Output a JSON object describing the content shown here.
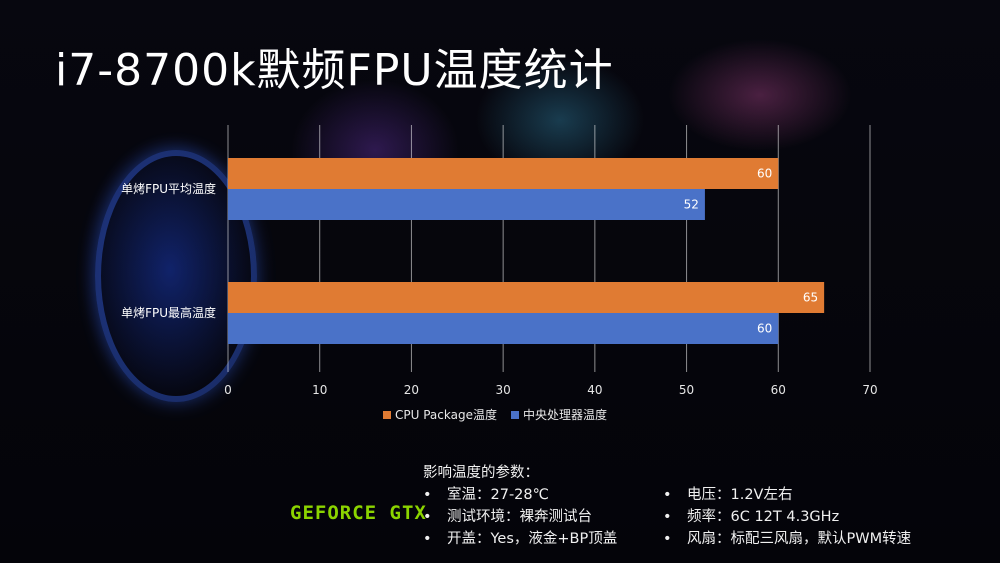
{
  "title": "i7-8700k默频FPU温度统计",
  "chart_data": {
    "type": "bar",
    "orientation": "horizontal",
    "categories": [
      "单烤FPU平均温度",
      "单烤FPU最高温度"
    ],
    "series": [
      {
        "name": "CPU Package温度",
        "values": [
          60,
          65
        ],
        "color": "#e07b33"
      },
      {
        "name": "中央处理器温度",
        "values": [
          52,
          60
        ],
        "color": "#4a72c8"
      }
    ],
    "xlim": [
      0,
      70
    ],
    "xticks": [
      0,
      10,
      20,
      30,
      40,
      50,
      60,
      70
    ],
    "grid": true,
    "legend": "bottom"
  },
  "logo_text": "GEFORCE GTX",
  "params": {
    "title": "影响温度的参数：",
    "bullet": "•",
    "left": [
      "室温：27-28℃",
      "测试环境：裸奔测试台",
      "开盖：Yes，液金+BP顶盖"
    ],
    "right": [
      "电压：1.2V左右",
      "频率：6C 12T 4.3GHz",
      "风扇：标配三风扇，默认PWM转速"
    ]
  }
}
